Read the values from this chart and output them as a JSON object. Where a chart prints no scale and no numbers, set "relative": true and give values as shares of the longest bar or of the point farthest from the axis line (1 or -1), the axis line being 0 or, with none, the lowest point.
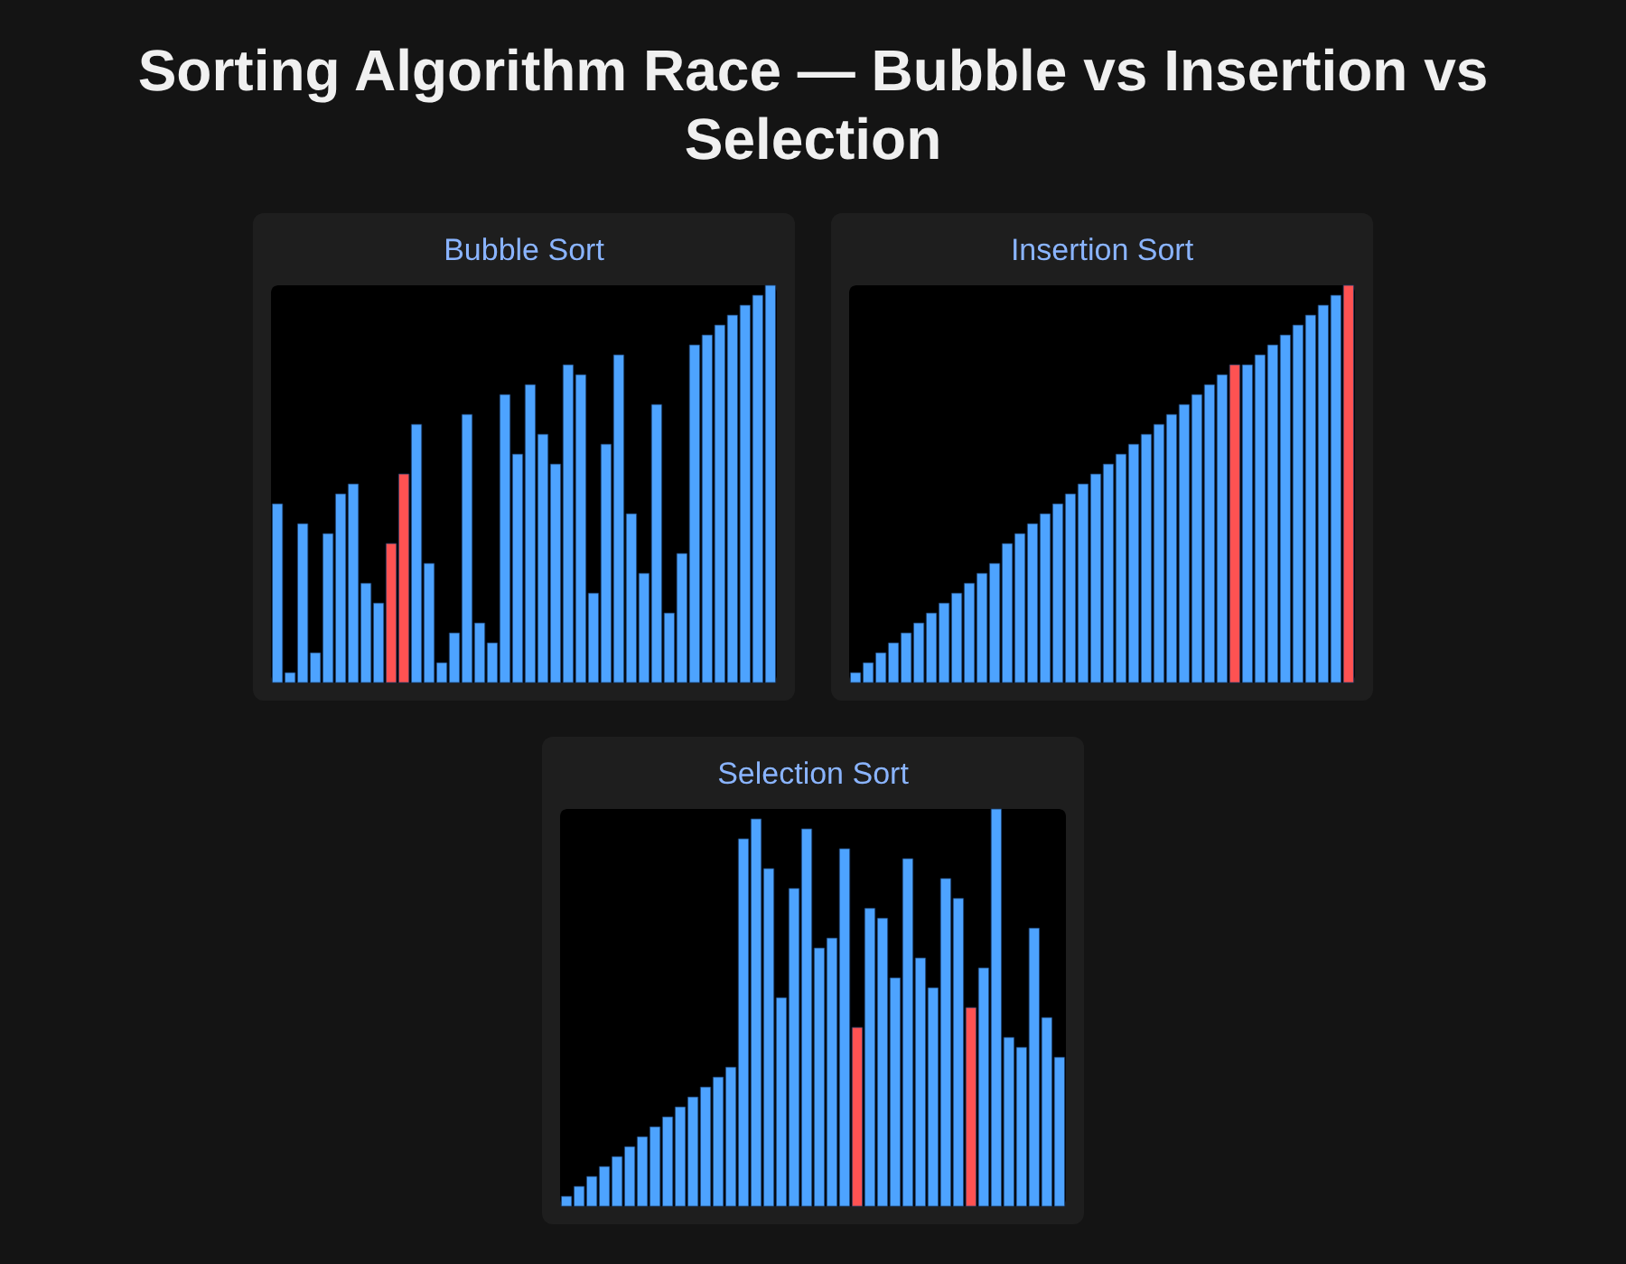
{
  "chart_data": [
    {
      "type": "other",
      "title": "Sorting Algorithm Race — Bubble vs Insertion vs Selection"
    },
    {
      "type": "bar",
      "title": "Bubble Sort",
      "relative": true,
      "categories": [
        null,
        null,
        null,
        null,
        null,
        null,
        null,
        null,
        null,
        null,
        null,
        null,
        null,
        null,
        null,
        null,
        null,
        null,
        null,
        null,
        null,
        null,
        null,
        null,
        null,
        null,
        null,
        null,
        null,
        null,
        null,
        null,
        null,
        null,
        null,
        null,
        null,
        null,
        null,
        null
      ],
      "values": [
        0.45,
        0.025,
        0.4,
        0.075,
        0.375,
        0.475,
        0.5,
        0.25,
        0.2,
        0.35,
        0.525,
        0.65,
        0.3,
        0.05,
        0.125,
        0.675,
        0.15,
        0.1,
        0.725,
        0.575,
        0.75,
        0.625,
        0.55,
        0.8,
        0.775,
        0.225,
        0.6,
        0.825,
        0.425,
        0.275,
        0.7,
        0.175,
        0.325,
        0.85,
        0.875,
        0.9,
        0.925,
        0.95,
        0.975,
        1
      ],
      "colors": [
        "#4da3ff",
        "#4da3ff",
        "#4da3ff",
        "#4da3ff",
        "#4da3ff",
        "#4da3ff",
        "#4da3ff",
        "#4da3ff",
        "#4da3ff",
        "#ff5252",
        "#ff5252",
        "#4da3ff",
        "#4da3ff",
        "#4da3ff",
        "#4da3ff",
        "#4da3ff",
        "#4da3ff",
        "#4da3ff",
        "#4da3ff",
        "#4da3ff",
        "#4da3ff",
        "#4da3ff",
        "#4da3ff",
        "#4da3ff",
        "#4da3ff",
        "#4da3ff",
        "#4da3ff",
        "#4da3ff",
        "#4da3ff",
        "#4da3ff",
        "#4da3ff",
        "#4da3ff",
        "#4da3ff",
        "#4da3ff",
        "#4da3ff",
        "#4da3ff",
        "#4da3ff",
        "#4da3ff",
        "#4da3ff",
        "#4da3ff"
      ]
    },
    {
      "type": "bar",
      "title": "Insertion Sort",
      "relative": true,
      "categories": [
        null,
        null,
        null,
        null,
        null,
        null,
        null,
        null,
        null,
        null,
        null,
        null,
        null,
        null,
        null,
        null,
        null,
        null,
        null,
        null,
        null,
        null,
        null,
        null,
        null,
        null,
        null,
        null,
        null,
        null,
        null,
        null,
        null,
        null,
        null,
        null,
        null,
        null,
        null,
        null
      ],
      "values": [
        0.025,
        0.05,
        0.075,
        0.1,
        0.125,
        0.15,
        0.175,
        0.2,
        0.225,
        0.25,
        0.275,
        0.3,
        0.35,
        0.375,
        0.4,
        0.425,
        0.45,
        0.475,
        0.5,
        0.525,
        0.55,
        0.575,
        0.6,
        0.625,
        0.65,
        0.675,
        0.7,
        0.725,
        0.75,
        0.775,
        0.8,
        0.8,
        0.825,
        0.85,
        0.875,
        0.9,
        0.925,
        0.95,
        0.975,
        1
      ],
      "colors": [
        "#4da3ff",
        "#4da3ff",
        "#4da3ff",
        "#4da3ff",
        "#4da3ff",
        "#4da3ff",
        "#4da3ff",
        "#4da3ff",
        "#4da3ff",
        "#4da3ff",
        "#4da3ff",
        "#4da3ff",
        "#4da3ff",
        "#4da3ff",
        "#4da3ff",
        "#4da3ff",
        "#4da3ff",
        "#4da3ff",
        "#4da3ff",
        "#4da3ff",
        "#4da3ff",
        "#4da3ff",
        "#4da3ff",
        "#4da3ff",
        "#4da3ff",
        "#4da3ff",
        "#4da3ff",
        "#4da3ff",
        "#4da3ff",
        "#4da3ff",
        "#ff5252",
        "#4da3ff",
        "#4da3ff",
        "#4da3ff",
        "#4da3ff",
        "#4da3ff",
        "#4da3ff",
        "#4da3ff",
        "#4da3ff",
        "#ff5252"
      ]
    },
    {
      "type": "bar",
      "title": "Selection Sort",
      "relative": true,
      "categories": [
        null,
        null,
        null,
        null,
        null,
        null,
        null,
        null,
        null,
        null,
        null,
        null,
        null,
        null,
        null,
        null,
        null,
        null,
        null,
        null,
        null,
        null,
        null,
        null,
        null,
        null,
        null,
        null,
        null,
        null,
        null,
        null,
        null,
        null,
        null,
        null,
        null,
        null,
        null,
        null
      ],
      "values": [
        0.025,
        0.05,
        0.075,
        0.1,
        0.125,
        0.15,
        0.175,
        0.2,
        0.225,
        0.25,
        0.275,
        0.3,
        0.325,
        0.35,
        0.925,
        0.975,
        0.85,
        0.525,
        0.8,
        0.95,
        0.65,
        0.675,
        0.9,
        0.45,
        0.75,
        0.725,
        0.575,
        0.875,
        0.625,
        0.55,
        0.825,
        0.775,
        0.5,
        0.6,
        1,
        0.425,
        0.4,
        0.7,
        0.475,
        0.375
      ],
      "colors": [
        "#4da3ff",
        "#4da3ff",
        "#4da3ff",
        "#4da3ff",
        "#4da3ff",
        "#4da3ff",
        "#4da3ff",
        "#4da3ff",
        "#4da3ff",
        "#4da3ff",
        "#4da3ff",
        "#4da3ff",
        "#4da3ff",
        "#4da3ff",
        "#4da3ff",
        "#4da3ff",
        "#4da3ff",
        "#4da3ff",
        "#4da3ff",
        "#4da3ff",
        "#4da3ff",
        "#4da3ff",
        "#4da3ff",
        "#ff5252",
        "#4da3ff",
        "#4da3ff",
        "#4da3ff",
        "#4da3ff",
        "#4da3ff",
        "#4da3ff",
        "#4da3ff",
        "#4da3ff",
        "#ff5252",
        "#4da3ff",
        "#4da3ff",
        "#4da3ff",
        "#4da3ff",
        "#4da3ff",
        "#4da3ff",
        "#4da3ff"
      ]
    }
  ]
}
